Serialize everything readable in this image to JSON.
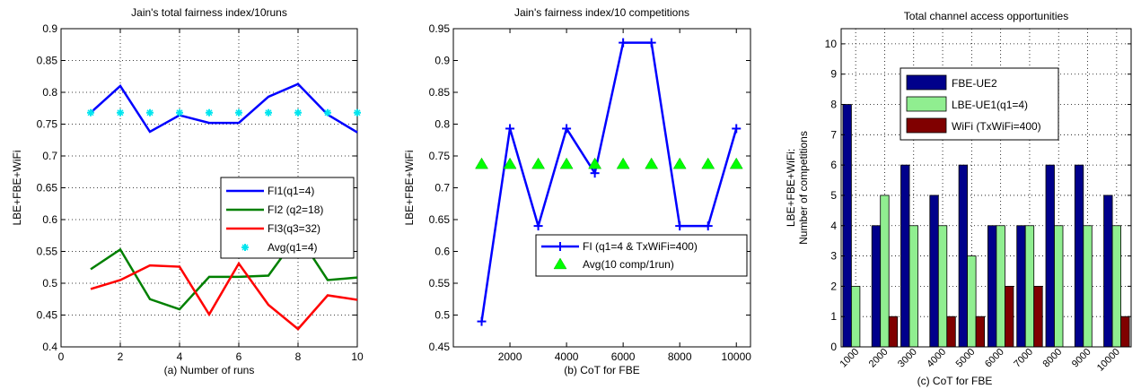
{
  "chart_data": [
    {
      "type": "line",
      "title": "Jain's total fairness index/10runs",
      "xlabel": "(a) Number of runs",
      "ylabel": "LBE+FBE+WiFi",
      "xlim": [
        0,
        10
      ],
      "ylim": [
        0.4,
        0.9
      ],
      "xticks": [
        0,
        2,
        4,
        6,
        8,
        10
      ],
      "yticks": [
        0.4,
        0.45,
        0.5,
        0.55,
        0.6,
        0.65,
        0.7,
        0.75,
        0.8,
        0.85,
        0.9
      ],
      "grid": true,
      "legend_position": "center-right",
      "series": [
        {
          "name": "FI1(q1=4)",
          "color": "#0000ff",
          "marker": "none",
          "x": [
            1,
            2,
            3,
            4,
            5,
            6,
            7,
            8,
            9,
            10
          ],
          "y": [
            0.768,
            0.81,
            0.738,
            0.764,
            0.752,
            0.752,
            0.793,
            0.813,
            0.765,
            0.737
          ]
        },
        {
          "name": "FI2 (q2=18)",
          "color": "#008000",
          "marker": "none",
          "x": [
            1,
            2,
            3,
            4,
            5,
            6,
            7,
            8,
            9,
            10
          ],
          "y": [
            0.522,
            0.553,
            0.475,
            0.459,
            0.51,
            0.51,
            0.512,
            0.576,
            0.505,
            0.509
          ]
        },
        {
          "name": "FI3(q3=32)",
          "color": "#ff0000",
          "marker": "none",
          "x": [
            1,
            2,
            3,
            4,
            5,
            6,
            7,
            8,
            9,
            10
          ],
          "y": [
            0.491,
            0.505,
            0.528,
            0.526,
            0.451,
            0.531,
            0.466,
            0.428,
            0.481,
            0.474
          ]
        },
        {
          "name": "Avg(q1=4)",
          "color": "#00e5ee",
          "marker": "star",
          "line": false,
          "x": [
            1,
            2,
            3,
            4,
            5,
            6,
            7,
            8,
            9,
            10
          ],
          "y": [
            0.768,
            0.768,
            0.768,
            0.768,
            0.768,
            0.768,
            0.768,
            0.768,
            0.768,
            0.768
          ]
        }
      ]
    },
    {
      "type": "line",
      "title": "Jain's fairness index/10 competitions",
      "xlabel": "(b) CoT for FBE",
      "ylabel": "LBE+FBE+WiFi",
      "xlim": [
        0,
        10500
      ],
      "ylim": [
        0.45,
        0.95
      ],
      "xticks": [
        2000,
        4000,
        6000,
        8000,
        10000
      ],
      "yticks": [
        0.45,
        0.5,
        0.55,
        0.6,
        0.65,
        0.7,
        0.75,
        0.8,
        0.85,
        0.9,
        0.95
      ],
      "grid": false,
      "legend_position": "bottom-right",
      "series": [
        {
          "name": "FI (q1=4 & TxWiFi=400)",
          "color": "#0000ff",
          "marker": "plus",
          "x": [
            1000,
            2000,
            3000,
            4000,
            5000,
            6000,
            7000,
            8000,
            9000,
            10000
          ],
          "y": [
            0.49,
            0.793,
            0.64,
            0.793,
            0.723,
            0.928,
            0.928,
            0.64,
            0.64,
            0.793
          ]
        },
        {
          "name": "Avg(10 comp/1run)",
          "color": "#00ff00",
          "marker": "triangle",
          "line": false,
          "x": [
            1000,
            2000,
            3000,
            4000,
            5000,
            6000,
            7000,
            8000,
            9000,
            10000
          ],
          "y": [
            0.737,
            0.737,
            0.737,
            0.737,
            0.737,
            0.737,
            0.737,
            0.737,
            0.737,
            0.737
          ]
        }
      ]
    },
    {
      "type": "bar",
      "title": "Total channel access opportunities",
      "xlabel": "(c) CoT for FBE",
      "ylabel": "LBE+FBE+WiFi:",
      "ylabel2": "Number of competitions",
      "categories": [
        "1000",
        "2000",
        "3000",
        "4000",
        "5000",
        "6000",
        "7000",
        "8000",
        "9000",
        "10000"
      ],
      "ylim": [
        0,
        10.5
      ],
      "yticks": [
        0,
        1,
        2,
        3,
        4,
        5,
        6,
        7,
        8,
        9,
        10
      ],
      "grid": true,
      "legend_position": "top",
      "series": [
        {
          "name": "FBE-UE2",
          "color": "#00008b",
          "values": [
            8,
            4,
            6,
            5,
            6,
            4,
            4,
            6,
            6,
            5
          ]
        },
        {
          "name": "LBE-UE1(q1=4)",
          "color": "#90ee90",
          "values": [
            2,
            5,
            4,
            4,
            3,
            4,
            4,
            4,
            4,
            4
          ]
        },
        {
          "name": "WiFi (TxWiFi=400)",
          "color": "#800000",
          "values": [
            0,
            1,
            0,
            1,
            1,
            2,
            2,
            0,
            0,
            1
          ]
        }
      ]
    }
  ]
}
